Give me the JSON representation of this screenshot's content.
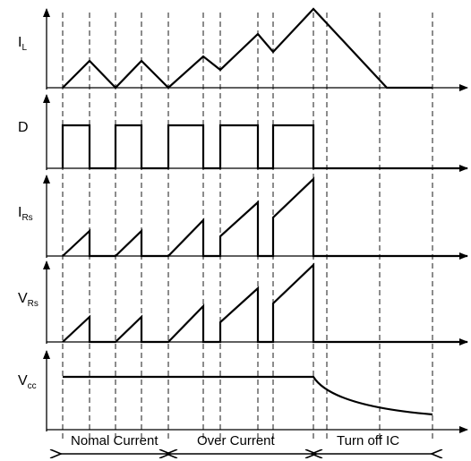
{
  "signals": [
    {
      "id": "il",
      "main": "I",
      "sub": "L"
    },
    {
      "id": "d",
      "main": "D",
      "sub": ""
    },
    {
      "id": "irs",
      "main": "I",
      "sub": "Rs"
    },
    {
      "id": "vrs",
      "main": "V",
      "sub": "Rs"
    },
    {
      "id": "vcc",
      "main": "V",
      "sub": "cc"
    }
  ],
  "phases": [
    {
      "label": "Nomal Current"
    },
    {
      "label": "Over Current"
    },
    {
      "label": "Turn off  IC"
    }
  ]
}
